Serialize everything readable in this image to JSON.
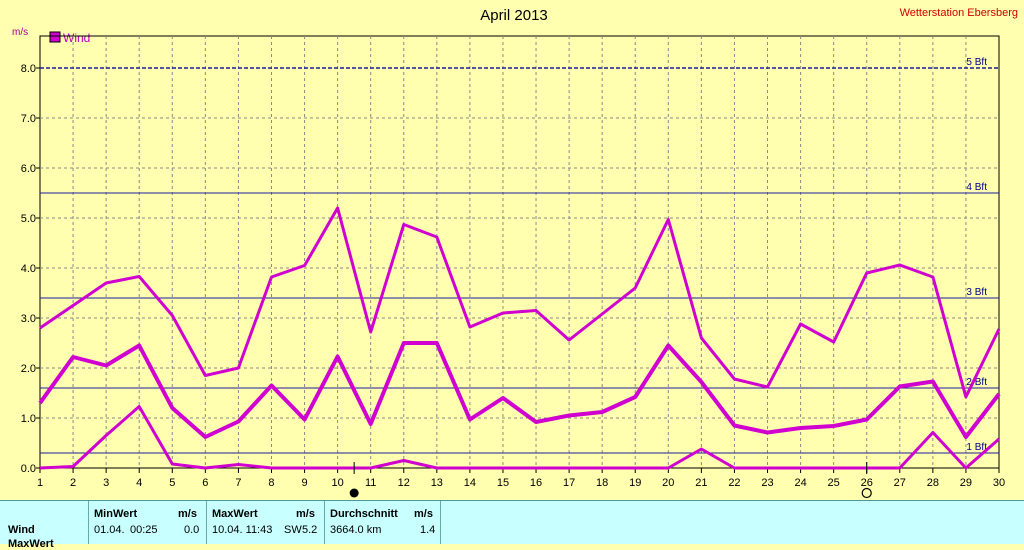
{
  "header": {
    "title": "April 2013",
    "station": "Wetterstation Ebersberg",
    "unit": "m/s",
    "legend_label": "Wind",
    "legend_color": "#d000d0"
  },
  "chart_data": {
    "type": "line",
    "title": "April 2013",
    "ylabel": "m/s",
    "x": [
      1,
      2,
      3,
      4,
      5,
      6,
      7,
      8,
      9,
      10,
      11,
      12,
      13,
      14,
      15,
      16,
      17,
      18,
      19,
      20,
      21,
      22,
      23,
      24,
      25,
      26,
      27,
      28,
      29,
      30
    ],
    "xlim": [
      1,
      30
    ],
    "ylim": [
      0,
      8.4
    ],
    "yticks": [
      "0.0",
      "1.0",
      "2.0",
      "3.0",
      "4.0",
      "5.0",
      "6.0",
      "7.0",
      "8.0"
    ],
    "grid": true,
    "legend": "top-left",
    "series": [
      {
        "name": "Wind",
        "role": "max",
        "color": "#d000d0",
        "values": [
          2.8,
          3.25,
          3.7,
          3.83,
          3.05,
          1.85,
          2.0,
          3.82,
          4.05,
          5.2,
          2.72,
          4.87,
          4.62,
          2.82,
          3.1,
          3.15,
          2.56,
          3.08,
          3.6,
          4.97,
          2.6,
          1.78,
          1.62,
          2.88,
          2.52,
          3.9,
          4.06,
          3.82,
          1.42,
          2.78
        ]
      },
      {
        "name": "Wind",
        "role": "mean",
        "color": "#d000d0",
        "values": [
          1.3,
          2.22,
          2.05,
          2.45,
          1.2,
          0.62,
          0.93,
          1.65,
          0.97,
          2.23,
          0.88,
          2.5,
          2.5,
          0.97,
          1.4,
          0.92,
          1.05,
          1.12,
          1.42,
          2.45,
          1.72,
          0.85,
          0.71,
          0.8,
          0.84,
          0.97,
          1.63,
          1.73,
          0.62,
          1.48
        ]
      },
      {
        "name": "Wind",
        "role": "min",
        "color": "#d000d0",
        "values": [
          0.0,
          0.03,
          0.65,
          1.23,
          0.08,
          0.0,
          0.07,
          0.0,
          0.0,
          0.0,
          0.0,
          0.15,
          0.0,
          0.0,
          0.0,
          0.0,
          0.0,
          0.0,
          0.0,
          0.0,
          0.38,
          0.0,
          0.0,
          0.0,
          0.0,
          0.0,
          0.0,
          0.71,
          0.0,
          0.58
        ]
      }
    ],
    "reference_lines": [
      {
        "label": "1 Bft",
        "value": 0.3
      },
      {
        "label": "2 Bft",
        "value": 1.6
      },
      {
        "label": "3 Bft",
        "value": 3.4
      },
      {
        "label": "4 Bft",
        "value": 5.5
      },
      {
        "label": "5 Bft",
        "value": 8.0
      }
    ],
    "markers": [
      {
        "day": 10.5,
        "symbol": "full-moon"
      },
      {
        "day": 26,
        "symbol": "new-moon"
      }
    ]
  },
  "stats": {
    "row_label": "Wind",
    "row2_label": "MaxWert",
    "min_header": "MinWert",
    "min_unit": "m/s",
    "min_date": "01.04.",
    "min_time": "00:25",
    "min_value": "0.0",
    "max_header": "MaxWert",
    "max_unit": "m/s",
    "max_datetime": "10.04.  11:43",
    "max_dir": "SW",
    "max_value": "5.2",
    "avg_header": "Durchschnitt",
    "avg_unit": "m/s",
    "avg_distance": "3664.0 km",
    "avg_value": "1.4"
  }
}
